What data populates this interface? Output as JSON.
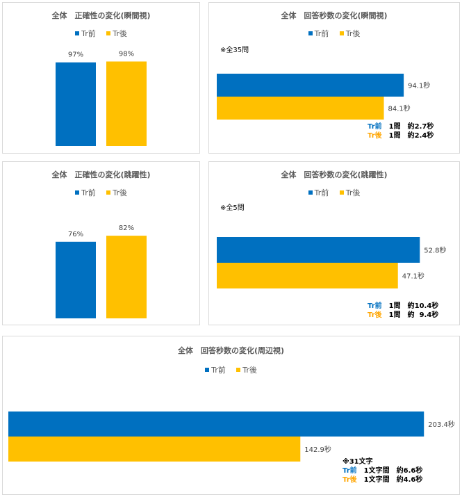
{
  "colors": {
    "pre": "#0070c0",
    "post": "#ffc000",
    "pre_label": "#0070c0",
    "post_label": "#ffa500"
  },
  "legend": {
    "pre": "Tr前",
    "post": "Tr後"
  },
  "chart_data": [
    {
      "id": "accuracy-instant",
      "type": "bar",
      "title": "全体　正確性の変化(瞬間視)",
      "categories": [
        "Tr前",
        "Tr後"
      ],
      "values": [
        97,
        98
      ],
      "value_labels": [
        "97%",
        "98%"
      ],
      "ylim": [
        0,
        100
      ],
      "grid": false,
      "legend_position": "top"
    },
    {
      "id": "time-instant",
      "type": "bar",
      "orientation": "horizontal",
      "title": "全体　回答秒数の変化(瞬間視)",
      "note": "※全35問",
      "categories": [
        "Tr前",
        "Tr後"
      ],
      "values": [
        94.1,
        84.1
      ],
      "value_labels": [
        "94.1秒",
        "84.1秒"
      ],
      "xlim": [
        0,
        100
      ],
      "legend_position": "top",
      "summary": [
        {
          "key": "Tr前",
          "text": "　1問　約2.7秒"
        },
        {
          "key": "Tr後",
          "text": "　1問　約2.4秒"
        }
      ]
    },
    {
      "id": "accuracy-jump",
      "type": "bar",
      "title": "全体　正確性の変化(跳躍性)",
      "categories": [
        "Tr前",
        "Tr後"
      ],
      "values": [
        76,
        82
      ],
      "value_labels": [
        "76%",
        "82%"
      ],
      "ylim": [
        0,
        100
      ],
      "grid": false,
      "legend_position": "top"
    },
    {
      "id": "time-jump",
      "type": "bar",
      "orientation": "horizontal",
      "title": "全体　回答秒数の変化(跳躍性)",
      "note": "※全5問",
      "categories": [
        "Tr前",
        "Tr後"
      ],
      "values": [
        52.8,
        47.1
      ],
      "value_labels": [
        "52.8秒",
        "47.1秒"
      ],
      "xlim": [
        0,
        56
      ],
      "legend_position": "top",
      "summary": [
        {
          "key": "Tr前",
          "text": "　1問　約10.4秒"
        },
        {
          "key": "Tr後",
          "text": "　1問　約  9.4秒"
        }
      ]
    },
    {
      "id": "time-peripheral",
      "type": "bar",
      "orientation": "horizontal",
      "title": "全体　回答秒数の変化(周辺視)",
      "note": "※31文字",
      "categories": [
        "Tr前",
        "Tr後"
      ],
      "values": [
        203.4,
        142.9
      ],
      "value_labels": [
        "203.4秒",
        "142.9秒"
      ],
      "xlim": [
        0,
        204
      ],
      "legend_position": "top",
      "summary": [
        {
          "key": "Tr前",
          "text": "　1文字間　約6.6秒"
        },
        {
          "key": "Tr後",
          "text": "　1文字間　約4.6秒"
        }
      ]
    }
  ]
}
